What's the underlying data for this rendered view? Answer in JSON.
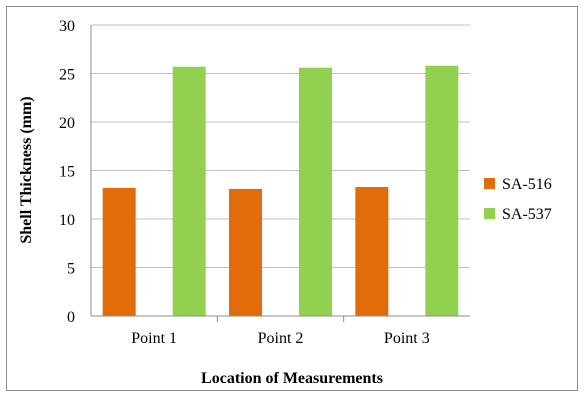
{
  "chart_data": {
    "type": "bar",
    "categories": [
      "Point 1",
      "Point 2",
      "Point 3"
    ],
    "series": [
      {
        "name": "SA-516",
        "values": [
          13.2,
          13.1,
          13.3
        ],
        "color": "#e36c0a"
      },
      {
        "name": "SA-537",
        "values": [
          25.7,
          25.6,
          25.8
        ],
        "color": "#92d050"
      }
    ],
    "xlabel": "Location  of Measurements",
    "ylabel": "Shell Thickness  (mm)",
    "ylim": [
      0,
      30
    ],
    "yticks": [
      0,
      5,
      10,
      15,
      20,
      25,
      30
    ],
    "grid": true,
    "legend_position": "right"
  }
}
